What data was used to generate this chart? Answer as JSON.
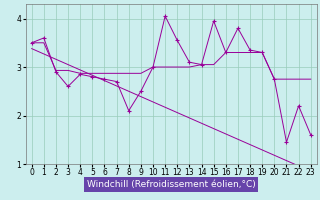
{
  "xlabel": "Windchill (Refroidissement éolien,°C)",
  "x": [
    0,
    1,
    2,
    3,
    4,
    5,
    6,
    7,
    8,
    9,
    10,
    11,
    12,
    13,
    14,
    15,
    16,
    17,
    18,
    19,
    20,
    21,
    22,
    23
  ],
  "y_main": [
    3.5,
    3.6,
    2.9,
    2.6,
    2.85,
    2.8,
    2.75,
    2.7,
    2.1,
    2.5,
    3.0,
    4.05,
    3.55,
    3.1,
    3.05,
    3.95,
    3.3,
    3.8,
    3.35,
    3.3,
    2.75,
    1.45,
    2.2,
    1.6
  ],
  "y_smooth": [
    3.5,
    3.5,
    2.93,
    2.93,
    2.87,
    2.87,
    2.87,
    2.87,
    2.87,
    2.87,
    3.0,
    3.0,
    3.0,
    3.0,
    3.05,
    3.05,
    3.3,
    3.3,
    3.3,
    3.3,
    2.75,
    2.75,
    2.75,
    2.75
  ],
  "y_trend": [
    3.38,
    3.27,
    3.16,
    3.05,
    2.94,
    2.83,
    2.72,
    2.61,
    2.5,
    2.39,
    2.28,
    2.17,
    2.06,
    1.95,
    1.84,
    1.73,
    1.62,
    1.51,
    1.4,
    1.29,
    1.18,
    1.07,
    0.96,
    0.85
  ],
  "color_main": "#990099",
  "color_smooth": "#990099",
  "color_trend": "#990099",
  "bg_color": "#cceeee",
  "grid_color": "#99ccbb",
  "label_bg": "#6644aa",
  "label_fg": "#ffffff",
  "ylim": [
    1.0,
    4.3
  ],
  "yticks": [
    1,
    2,
    3,
    4
  ],
  "xlim": [
    -0.5,
    23.5
  ],
  "tick_fontsize": 5.5,
  "label_fontsize": 6.5,
  "marker": "+"
}
